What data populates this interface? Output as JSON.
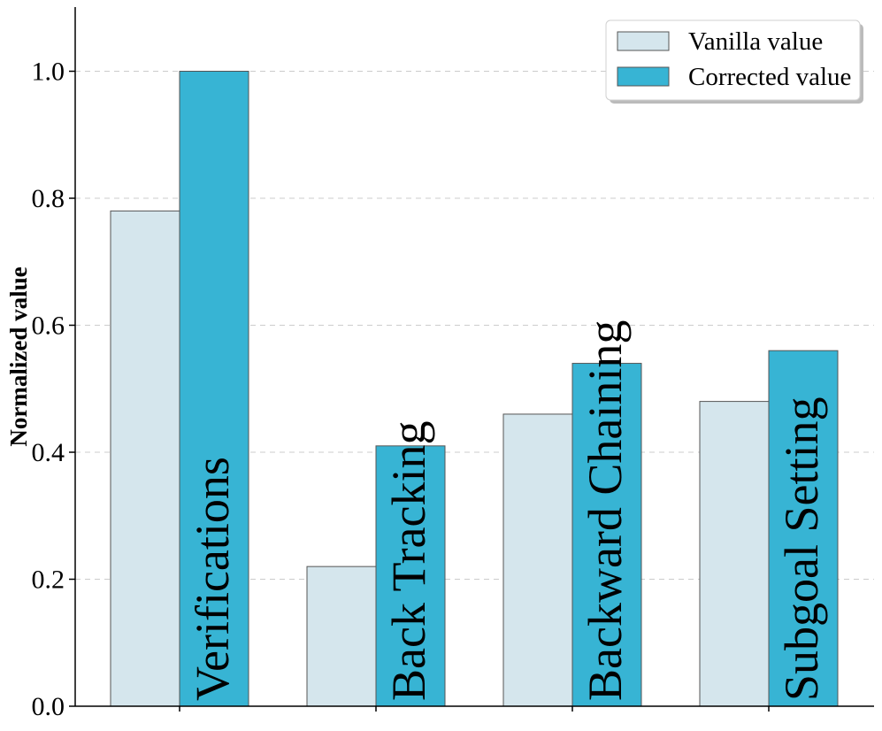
{
  "chart_data": {
    "type": "bar",
    "title": "",
    "xlabel": "",
    "ylabel": "Normalized value",
    "ylim": [
      0,
      1.1
    ],
    "yticks": [
      "0.0",
      "0.2",
      "0.4",
      "0.6",
      "0.8",
      "1.0"
    ],
    "ytick_values": [
      0,
      0.2,
      0.4,
      0.6,
      0.8,
      1.0
    ],
    "grid": "horizontal dashed",
    "legend_position": "top-right",
    "categories": [
      "Verifications",
      "Back Tracking",
      "Backward Chaining",
      "Subgoal Setting"
    ],
    "series": [
      {
        "name": "Vanilla value",
        "color": "#d5e6ed",
        "values": [
          0.78,
          0.22,
          0.46,
          0.48
        ]
      },
      {
        "name": "Corrected value",
        "color": "#37b4d4",
        "values": [
          1.0,
          0.41,
          0.54,
          0.56
        ]
      }
    ]
  }
}
